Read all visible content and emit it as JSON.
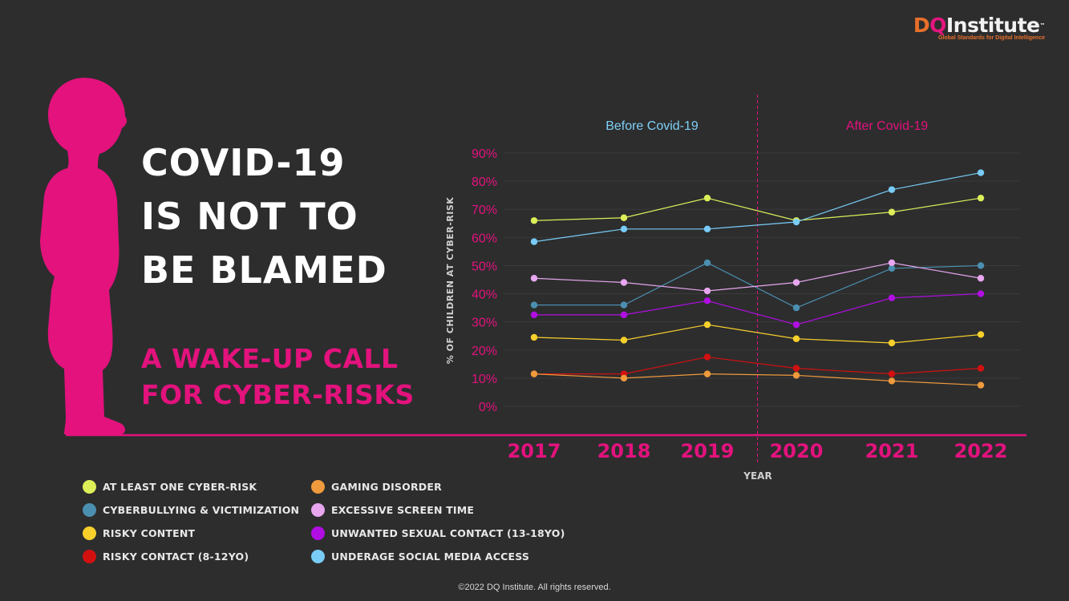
{
  "logo": {
    "d": "D",
    "q": "Q",
    "rest": "Institute",
    "tm": "™",
    "tagline": "Global Standards for Digital Intelligence"
  },
  "headline": [
    "COVID-19",
    "IS NOT TO",
    "BE BLAMED"
  ],
  "subhead": [
    "A WAKE-UP CALL",
    "FOR CYBER-RISKS"
  ],
  "footer": "©2022 DQ Institute. All rights reserved.",
  "colors": {
    "accent": "#e3127d",
    "background": "#2d2d2e",
    "before": "#7ed0f5"
  },
  "chart_data": {
    "type": "line",
    "x": [
      "2017",
      "2018",
      "2019",
      "2020",
      "2021",
      "2022"
    ],
    "xlabel": "YEAR",
    "ylabel": "% OF CHILDREN AT CYBER-RISK",
    "yticks": [
      "0%",
      "10%",
      "20%",
      "30%",
      "40%",
      "50%",
      "60%",
      "70%",
      "80%",
      "90%"
    ],
    "ylim": [
      0,
      90
    ],
    "grid": true,
    "divider_between": [
      "2019",
      "2020"
    ],
    "period_labels": {
      "before": "Before Covid-19",
      "after": "After Covid-19"
    },
    "legend_position": "bottom-left",
    "series": [
      {
        "name": "AT LEAST ONE CYBER-RISK",
        "color": "#dcef59",
        "values": [
          66,
          67,
          74,
          66,
          69,
          74
        ]
      },
      {
        "name": "CYBERBULLYING & VICTIMIZATION",
        "color": "#4b8fb0",
        "values": [
          36,
          36,
          51,
          35,
          49,
          50
        ]
      },
      {
        "name": "RISKY CONTENT",
        "color": "#f7d02b",
        "values": [
          24.5,
          23.5,
          29,
          24,
          22.5,
          25.5
        ]
      },
      {
        "name": "RISKY CONTACT (8-12YO)",
        "color": "#d31010",
        "values": [
          11.5,
          11.5,
          17.5,
          13.5,
          11.5,
          13.5
        ]
      },
      {
        "name": "GAMING DISORDER",
        "color": "#ef9a3c",
        "values": [
          11.5,
          10,
          11.5,
          11,
          9,
          7.5
        ]
      },
      {
        "name": "EXCESSIVE SCREEN TIME",
        "color": "#e8a6ef",
        "values": [
          45.5,
          44,
          41,
          44,
          51,
          45.5
        ]
      },
      {
        "name": "UNWANTED SEXUAL CONTACT (13-18YO)",
        "color": "#b10ee3",
        "values": [
          32.5,
          32.5,
          37.5,
          29,
          38.5,
          40
        ]
      },
      {
        "name": "UNDERAGE SOCIAL MEDIA ACCESS",
        "color": "#78ccf6",
        "values": [
          58.5,
          63,
          63,
          65.5,
          77,
          83
        ]
      }
    ]
  }
}
